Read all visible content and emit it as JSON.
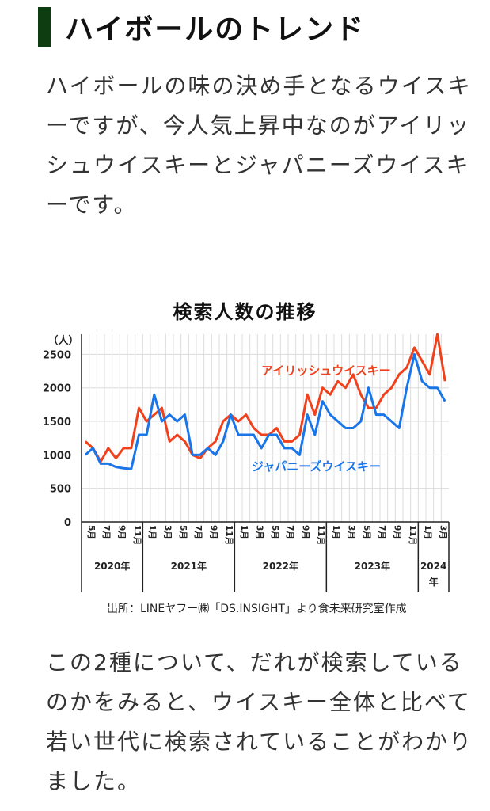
{
  "heading": "ハイボールのトレンド",
  "intro_text": "ハイボールの味の決め手となるウイスキーですが、今人気上昇中なのがアイリッシュウイスキーとジャパニーズウイスキーです。",
  "source": "出所：LINEヤフー㈱「DS.INSIGHT」より食未来研究室作成",
  "conclusion_text": "この2種について、だれが検索しているのかをみると、ウイスキー全体と比べて若い世代に検索されていることがわかりました。",
  "colors": {
    "irish": "#f0401c",
    "japanese": "#1a75e8",
    "heading_bar": "#0f3d12"
  },
  "chart_data": {
    "type": "line",
    "title": "検索人数の推移",
    "ylabel": "（人）",
    "ylim": [
      0,
      2800
    ],
    "yticks": [
      0,
      500,
      1000,
      1500,
      2000,
      2500
    ],
    "grid": true,
    "x": [
      "2020-05",
      "2020-06",
      "2020-07",
      "2020-08",
      "2020-09",
      "2020-10",
      "2020-11",
      "2020-12",
      "2021-01",
      "2021-02",
      "2021-03",
      "2021-04",
      "2021-05",
      "2021-06",
      "2021-07",
      "2021-08",
      "2021-09",
      "2021-10",
      "2021-11",
      "2021-12",
      "2022-01",
      "2022-02",
      "2022-03",
      "2022-04",
      "2022-05",
      "2022-06",
      "2022-07",
      "2022-08",
      "2022-09",
      "2022-10",
      "2022-11",
      "2022-12",
      "2023-01",
      "2023-02",
      "2023-03",
      "2023-04",
      "2023-05",
      "2023-06",
      "2023-07",
      "2023-08",
      "2023-09",
      "2023-10",
      "2023-11",
      "2023-12",
      "2024-01",
      "2024-02",
      "2024-03",
      "2024-04"
    ],
    "month_tick_labels": [
      {
        "index": 0,
        "label": "5月"
      },
      {
        "index": 2,
        "label": "7月"
      },
      {
        "index": 4,
        "label": "9月"
      },
      {
        "index": 6,
        "label": "11月"
      },
      {
        "index": 8,
        "label": "1月"
      },
      {
        "index": 10,
        "label": "3月"
      },
      {
        "index": 12,
        "label": "5月"
      },
      {
        "index": 14,
        "label": "7月"
      },
      {
        "index": 16,
        "label": "9月"
      },
      {
        "index": 18,
        "label": "11月"
      },
      {
        "index": 20,
        "label": "1月"
      },
      {
        "index": 22,
        "label": "3月"
      },
      {
        "index": 24,
        "label": "5月"
      },
      {
        "index": 26,
        "label": "7月"
      },
      {
        "index": 28,
        "label": "9月"
      },
      {
        "index": 30,
        "label": "11月"
      },
      {
        "index": 32,
        "label": "1月"
      },
      {
        "index": 34,
        "label": "3月"
      },
      {
        "index": 36,
        "label": "5月"
      },
      {
        "index": 38,
        "label": "7月"
      },
      {
        "index": 40,
        "label": "9月"
      },
      {
        "index": 42,
        "label": "11月"
      },
      {
        "index": 44,
        "label": "1月"
      },
      {
        "index": 46,
        "label": "3月"
      }
    ],
    "year_groups": [
      {
        "label": "2020年",
        "start": 0,
        "end": 7
      },
      {
        "label": "2021年",
        "start": 8,
        "end": 19
      },
      {
        "label": "2022年",
        "start": 20,
        "end": 31
      },
      {
        "label": "2023年",
        "start": 32,
        "end": 43
      },
      {
        "label": "2024\n年",
        "start": 44,
        "end": 47
      }
    ],
    "series": [
      {
        "name": "アイリッシュウイスキー",
        "color": "#f0401c",
        "values": [
          1200,
          1100,
          900,
          1100,
          950,
          1100,
          1100,
          1700,
          1500,
          1600,
          1700,
          1200,
          1300,
          1200,
          1000,
          950,
          1100,
          1200,
          1500,
          1600,
          1500,
          1600,
          1400,
          1300,
          1300,
          1400,
          1200,
          1200,
          1300,
          1900,
          1600,
          2000,
          1900,
          2100,
          2000,
          2200,
          1900,
          1700,
          1700,
          1900,
          2000,
          2200,
          2300,
          2600,
          2400,
          2200,
          2800,
          2100
        ]
      },
      {
        "name": "ジャパニーズウイスキー",
        "color": "#1a75e8",
        "values": [
          1000,
          1100,
          870,
          870,
          820,
          800,
          790,
          1300,
          1300,
          1900,
          1500,
          1600,
          1500,
          1600,
          1000,
          1000,
          1100,
          1000,
          1200,
          1600,
          1300,
          1300,
          1300,
          1100,
          1300,
          1300,
          1100,
          1100,
          1000,
          1600,
          1300,
          1800,
          1600,
          1500,
          1400,
          1400,
          1500,
          2000,
          1600,
          1600,
          1500,
          1400,
          2000,
          2500,
          2100,
          2000,
          2000,
          1800
        ]
      }
    ]
  }
}
